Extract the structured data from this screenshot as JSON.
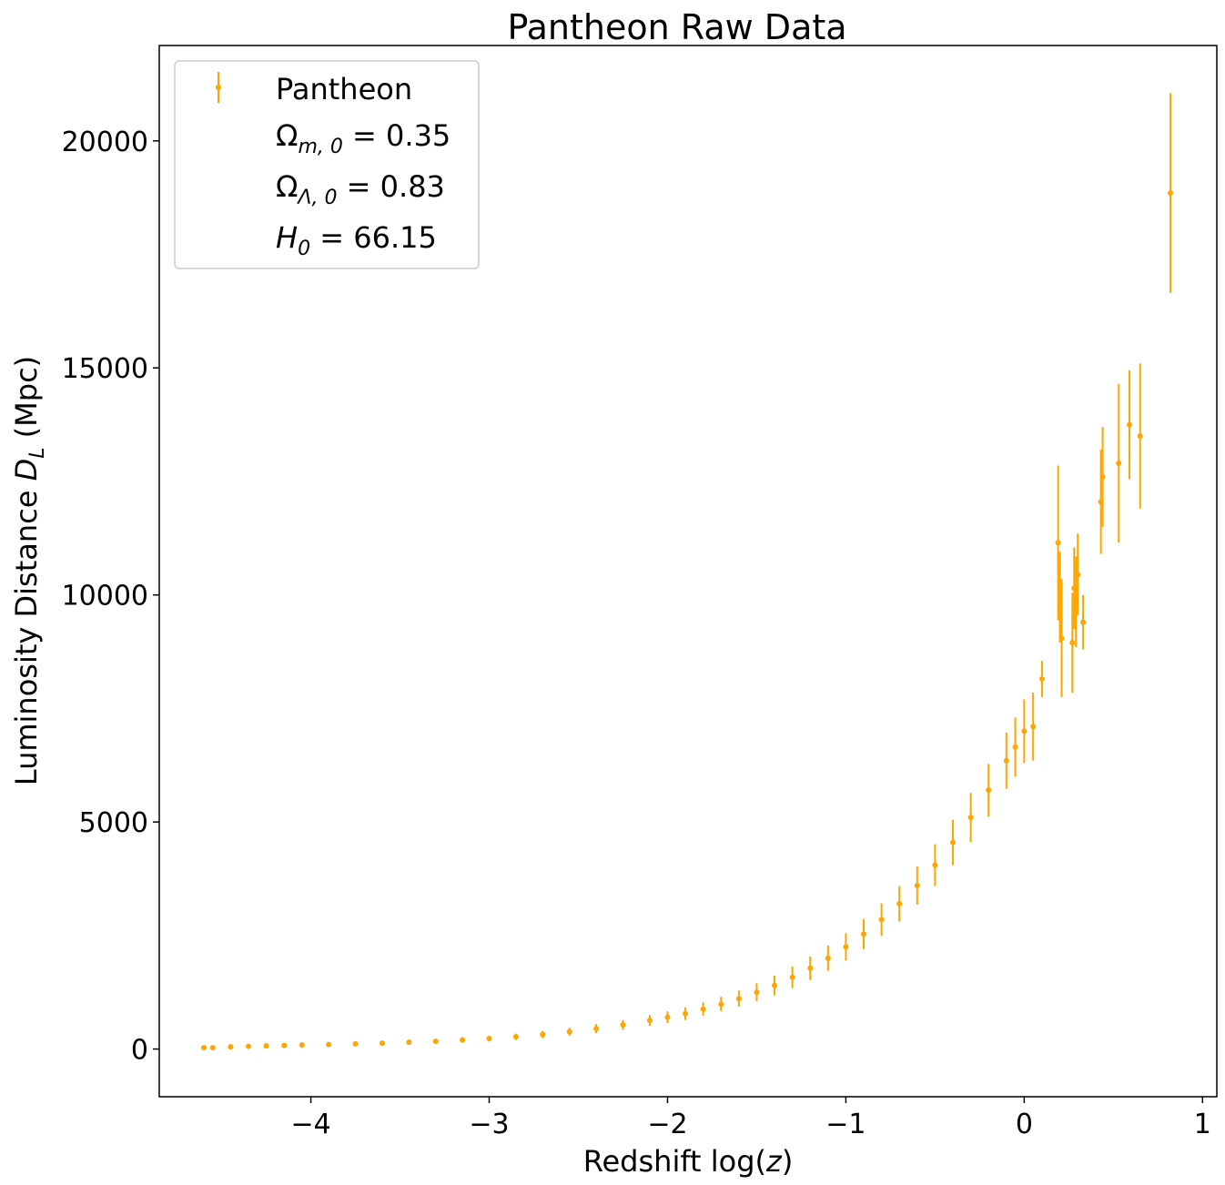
{
  "chart_data": {
    "type": "scatter",
    "title": "Pantheon Raw Data",
    "xlabel": "Redshift log(z)",
    "ylabel": "Luminosity Distance D_L (Mpc)",
    "xlim": [
      -4.85,
      1.08
    ],
    "ylim": [
      -1050,
      22100
    ],
    "xticks": [
      -4,
      -3,
      -2,
      -1,
      0,
      1
    ],
    "xtick_labels": [
      "−4",
      "−3",
      "−2",
      "−1",
      "0",
      "1"
    ],
    "yticks": [
      0,
      5000,
      10000,
      15000,
      20000
    ],
    "ytick_labels": [
      "0",
      "5000",
      "10000",
      "15000",
      "20000"
    ],
    "grid": false,
    "legend_position": "top-left",
    "legend": {
      "series_label": "Pantheon",
      "params": [
        {
          "symbol": "Ω",
          "sub": "m, 0",
          "italic": false,
          "value": "0.35"
        },
        {
          "symbol": "Ω",
          "sub": "Λ, 0",
          "italic": false,
          "value": "0.83"
        },
        {
          "symbol": "H",
          "sub": "0",
          "italic": true,
          "value": "66.15"
        }
      ]
    },
    "colors": {
      "series": "#ffa500",
      "axes": "#000000"
    },
    "series": [
      {
        "name": "Pantheon",
        "x": [
          -4.6,
          -4.55,
          -4.45,
          -4.35,
          -4.25,
          -4.15,
          -4.05,
          -3.9,
          -3.75,
          -3.6,
          -3.45,
          -3.3,
          -3.15,
          -3.0,
          -2.85,
          -2.7,
          -2.55,
          -2.4,
          -2.25,
          -2.1,
          -2.0,
          -1.9,
          -1.8,
          -1.7,
          -1.6,
          -1.5,
          -1.4,
          -1.3,
          -1.2,
          -1.1,
          -1.0,
          -0.9,
          -0.8,
          -0.7,
          -0.6,
          -0.5,
          -0.4,
          -0.3,
          -0.2,
          -0.1,
          -0.05,
          0.0,
          0.05,
          0.1,
          0.19,
          0.2,
          0.21,
          0.27,
          0.28,
          0.29,
          0.3,
          0.33,
          0.43,
          0.44,
          0.53,
          0.59,
          0.65,
          0.82
        ],
        "y": [
          30,
          30,
          50,
          60,
          70,
          80,
          90,
          100,
          115,
          130,
          150,
          170,
          200,
          230,
          270,
          320,
          380,
          450,
          530,
          630,
          700,
          780,
          880,
          990,
          1110,
          1250,
          1400,
          1580,
          1780,
          2000,
          2250,
          2530,
          2850,
          3200,
          3600,
          4050,
          4550,
          5100,
          5700,
          6350,
          6650,
          7000,
          7100,
          8150,
          11150,
          9950,
          9050,
          8950,
          10150,
          9850,
          10450,
          9400,
          12050,
          12600,
          12900,
          13750,
          13500,
          18850
        ],
        "yerr": [
          20,
          20,
          25,
          25,
          30,
          30,
          35,
          35,
          40,
          45,
          50,
          55,
          60,
          65,
          70,
          80,
          90,
          100,
          110,
          120,
          130,
          140,
          150,
          160,
          180,
          200,
          220,
          240,
          260,
          280,
          300,
          330,
          360,
          390,
          420,
          460,
          500,
          540,
          580,
          620,
          650,
          700,
          750,
          400,
          1700,
          1000,
          1300,
          1100,
          900,
          1000,
          900,
          600,
          1150,
          1100,
          1750,
          1200,
          1600,
          2200
        ]
      }
    ]
  }
}
